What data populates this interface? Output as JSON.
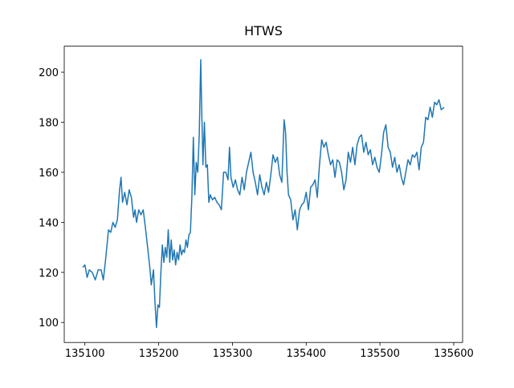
{
  "chart_data": {
    "type": "line",
    "title": "HTWS",
    "x": [
      135097,
      135100,
      135103,
      135106,
      135110,
      135114,
      135118,
      135122,
      135125,
      135128,
      135132,
      135135,
      135138,
      135141,
      135144,
      135147,
      135149,
      135151,
      135154,
      135157,
      135160,
      135163,
      135166,
      135168,
      135170,
      135173,
      135176,
      135179,
      135182,
      135185,
      135188,
      135190,
      135193,
      135195,
      135197,
      135199,
      135201,
      135203,
      135205,
      135207,
      135209,
      135211,
      135213,
      135215,
      135217,
      135219,
      135221,
      135223,
      135225,
      135227,
      135229,
      135231,
      135233,
      135235,
      135237,
      135239,
      135241,
      135243,
      135245,
      135247,
      135249,
      135251,
      135253,
      135255,
      135257,
      135258,
      135260,
      135262,
      135264,
      135266,
      135268,
      135270,
      135273,
      135276,
      135279,
      135282,
      135285,
      135288,
      135291,
      135294,
      135296,
      135298,
      135301,
      135304,
      135307,
      135310,
      135313,
      135316,
      135319,
      135322,
      135325,
      135328,
      135331,
      135334,
      135337,
      135340,
      135343,
      135346,
      135349,
      135352,
      135355,
      135358,
      135361,
      135364,
      135367,
      135370,
      135372,
      135374,
      135376,
      135379,
      135382,
      135385,
      135388,
      135391,
      135394,
      135397,
      135400,
      135403,
      135406,
      135409,
      135412,
      135415,
      135418,
      135421,
      135424,
      135427,
      135430,
      135433,
      135436,
      135439,
      135442,
      135445,
      135448,
      135451,
      135454,
      135457,
      135460,
      135463,
      135466,
      135469,
      135472,
      135475,
      135478,
      135481,
      135484,
      135487,
      135490,
      135493,
      135496,
      135499,
      135502,
      135505,
      135508,
      135511,
      135514,
      135517,
      135520,
      135523,
      135526,
      135529,
      135532,
      135535,
      135538,
      135541,
      135544,
      135547,
      135550,
      135553,
      135556,
      135559,
      135562,
      135565,
      135568,
      135571,
      135574,
      135577,
      135580,
      135583,
      135587
    ],
    "series": [
      {
        "name": "HTWS",
        "color": "#1f77b4",
        "values": [
          122,
          123,
          118,
          121,
          120,
          117,
          121,
          121,
          117,
          125,
          137,
          136,
          140,
          138,
          141,
          153,
          158,
          148,
          152,
          147,
          153,
          150,
          142,
          145,
          140,
          145,
          143,
          145,
          138,
          130,
          122,
          115,
          121,
          108,
          98,
          107,
          106,
          120,
          131,
          124,
          130,
          126,
          137,
          124,
          133,
          125,
          129,
          123,
          128,
          125,
          131,
          127,
          129,
          128,
          133,
          130,
          135,
          136,
          150,
          174,
          151,
          164,
          160,
          175,
          205,
          190,
          163,
          180,
          162,
          163,
          148,
          151,
          149,
          150,
          148,
          147,
          145,
          160,
          160,
          157,
          170,
          158,
          154,
          157,
          153,
          151,
          158,
          153,
          160,
          164,
          168,
          160,
          156,
          151,
          159,
          154,
          151,
          156,
          152,
          159,
          167,
          164,
          166,
          159,
          156,
          181,
          176,
          160,
          151,
          149,
          141,
          145,
          137,
          145,
          147,
          148,
          152,
          145,
          154,
          155,
          157,
          150,
          163,
          173,
          170,
          172,
          167,
          163,
          165,
          158,
          165,
          164,
          160,
          153,
          157,
          168,
          164,
          170,
          163,
          171,
          174,
          175,
          168,
          172,
          167,
          169,
          163,
          166,
          162,
          160,
          167,
          176,
          179,
          170,
          168,
          162,
          166,
          160,
          163,
          158,
          155,
          160,
          165,
          163,
          167,
          166,
          168,
          161,
          170,
          172,
          182,
          181,
          186,
          182,
          188,
          187,
          189,
          185,
          186
        ]
      }
    ],
    "xlim": [
      135072,
      135612
    ],
    "ylim": [
      92,
      210.4
    ],
    "xticks": [
      135100,
      135200,
      135300,
      135400,
      135500,
      135600
    ],
    "yticks": [
      100,
      120,
      140,
      160,
      180,
      200
    ]
  }
}
